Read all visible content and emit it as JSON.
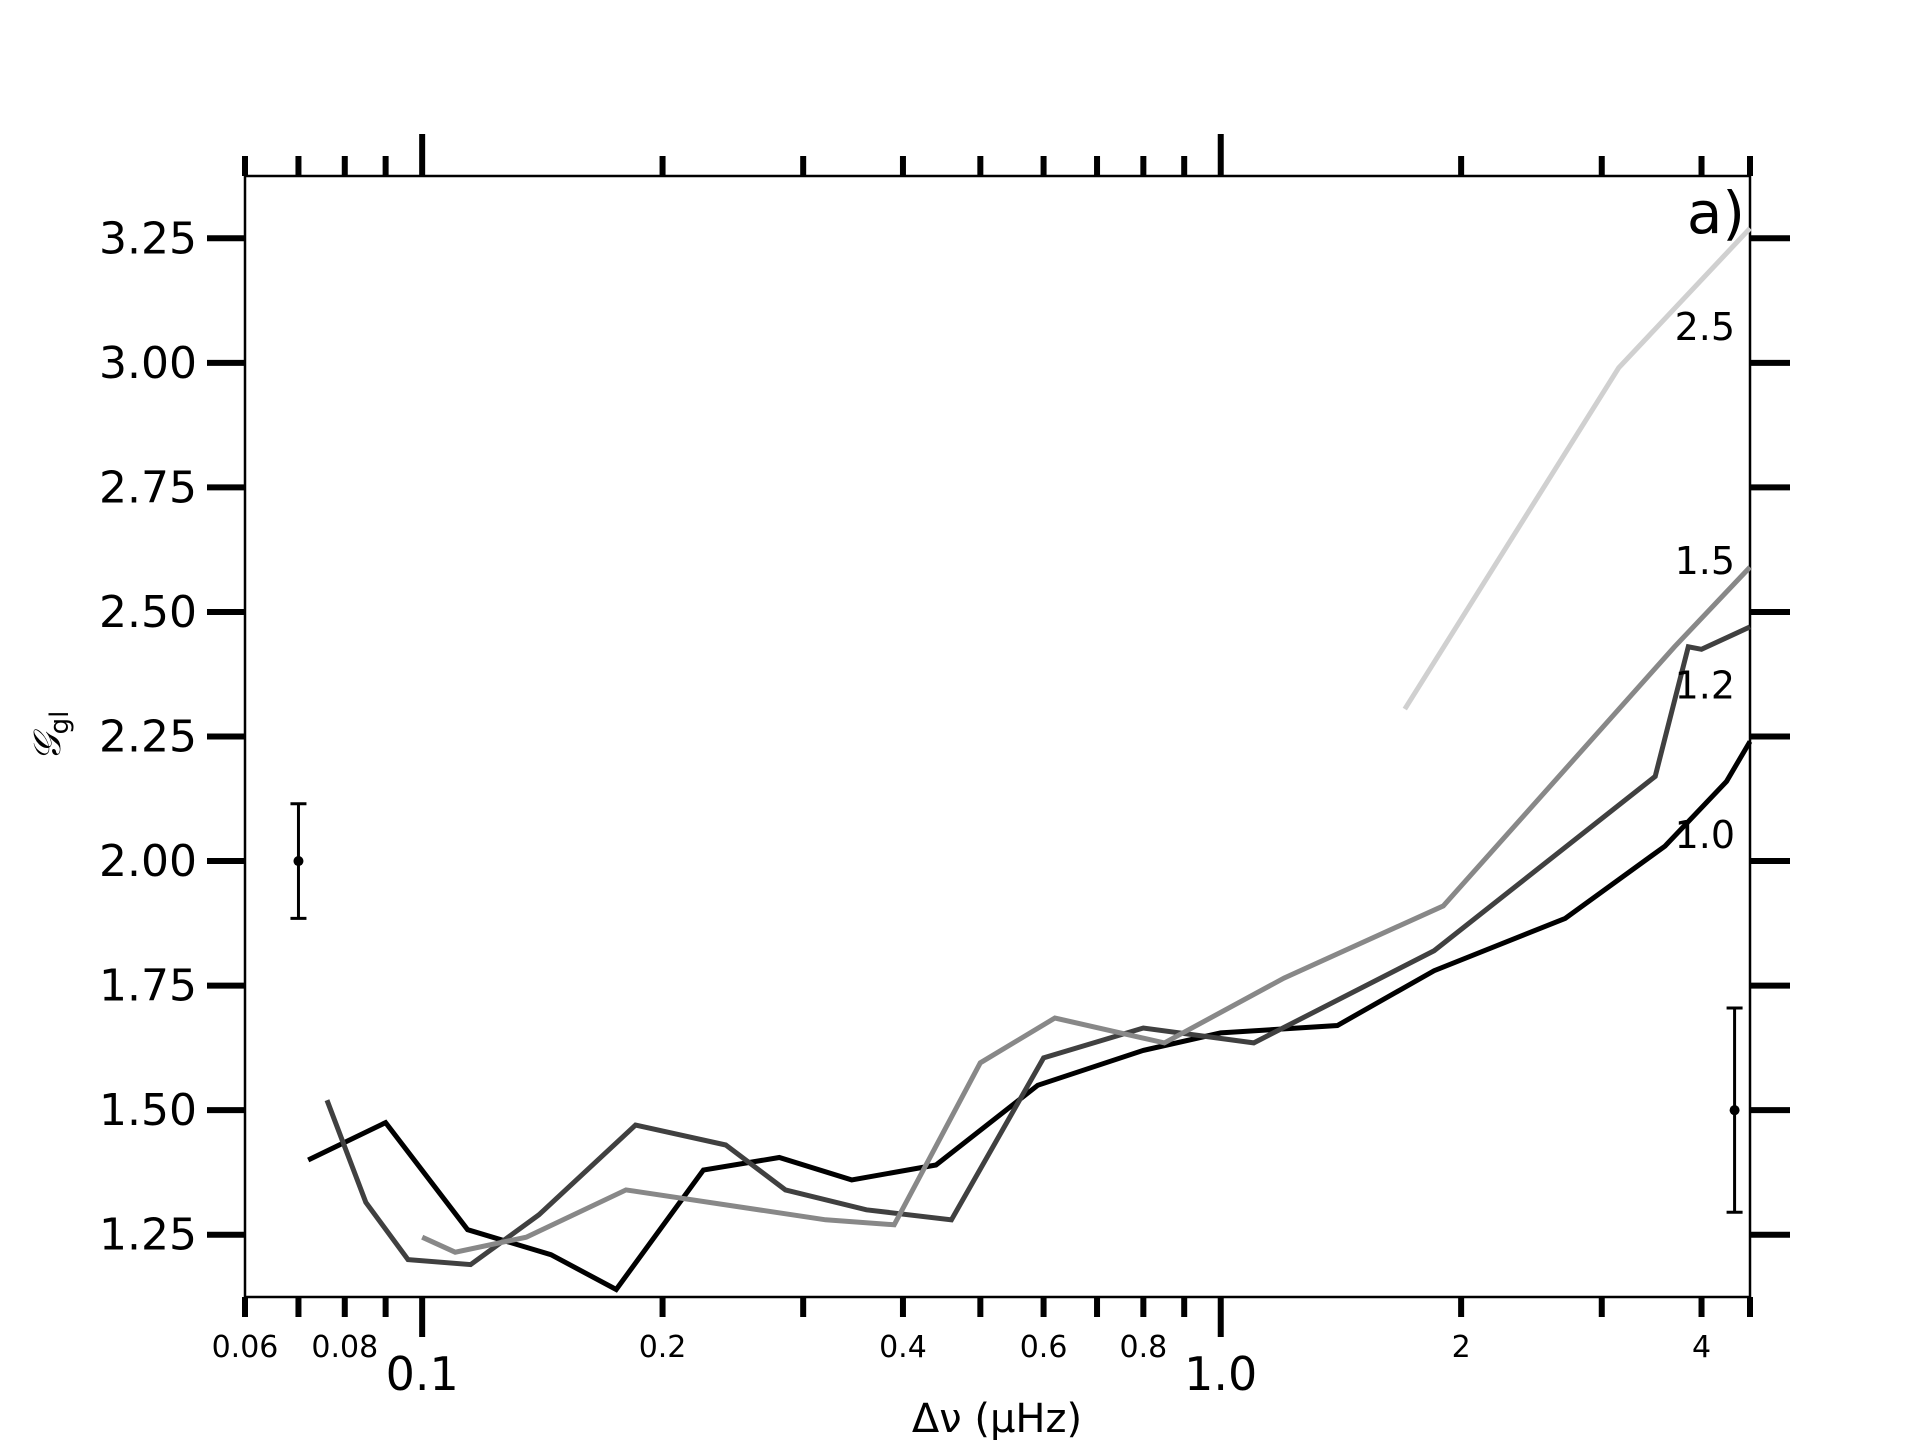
{
  "chart_data": {
    "type": "line",
    "panel_label": "a)",
    "xlabel": "Δν (μHz)",
    "ylabel": "𝒢",
    "ylabel_sub": "gl",
    "x_scale": "log",
    "xlim": [
      0.06,
      4.6
    ],
    "ylim": [
      1.125,
      3.375
    ],
    "yticks": [
      "1.25",
      "1.50",
      "1.75",
      "2.00",
      "2.25",
      "2.50",
      "2.75",
      "3.00",
      "3.25"
    ],
    "xticks_major": [
      "0.1",
      "1.0"
    ],
    "xticks_minor": [
      "0.06",
      "0.08",
      "0.2",
      "0.4",
      "0.6",
      "0.8",
      "2",
      "4"
    ],
    "grid": false,
    "series": [
      {
        "name": "1.0",
        "color": "#000000",
        "x": [
          0.072,
          0.09,
          0.114,
          0.145,
          0.175,
          0.225,
          0.28,
          0.345,
          0.44,
          0.59,
          0.8,
          1.0,
          1.4,
          1.85,
          2.7,
          3.6,
          4.3,
          4.6
        ],
        "y": [
          1.4,
          1.475,
          1.26,
          1.21,
          1.14,
          1.38,
          1.405,
          1.36,
          1.39,
          1.55,
          1.62,
          1.655,
          1.67,
          1.78,
          1.885,
          2.03,
          2.16,
          2.24
        ]
      },
      {
        "name": "1.2",
        "color": "#404040",
        "x": [
          0.076,
          0.085,
          0.096,
          0.115,
          0.14,
          0.185,
          0.24,
          0.285,
          0.36,
          0.46,
          0.6,
          0.8,
          1.1,
          1.85,
          3.5,
          3.85,
          4.0,
          4.6
        ],
        "y": [
          1.52,
          1.315,
          1.2,
          1.19,
          1.29,
          1.47,
          1.43,
          1.34,
          1.3,
          1.28,
          1.605,
          1.665,
          1.635,
          1.82,
          2.17,
          2.43,
          2.425,
          2.47
        ]
      },
      {
        "name": "1.5",
        "color": "#888888",
        "x": [
          0.1,
          0.11,
          0.135,
          0.18,
          0.32,
          0.39,
          0.5,
          0.62,
          0.85,
          1.2,
          1.9,
          3.7,
          4.6
        ],
        "y": [
          1.245,
          1.215,
          1.245,
          1.34,
          1.28,
          1.27,
          1.595,
          1.685,
          1.635,
          1.765,
          1.91,
          2.43,
          2.59
        ]
      },
      {
        "name": "2.5",
        "color": "#d0d0d0",
        "x": [
          1.7,
          3.15,
          4.6
        ],
        "y": [
          2.305,
          2.99,
          3.27
        ]
      }
    ],
    "errorbars": [
      {
        "x": 0.07,
        "y": 2.0,
        "yerr_low": 0.115,
        "yerr_high": 0.115
      },
      {
        "x": 4.4,
        "y": 1.5,
        "yerr_low": 0.205,
        "yerr_high": 0.205
      }
    ]
  }
}
